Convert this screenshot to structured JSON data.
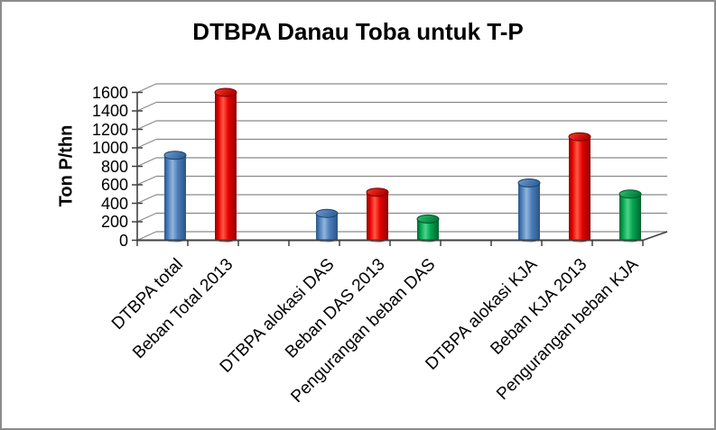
{
  "window": {
    "background": "#ffffff",
    "frame_color": "#8c8c8c"
  },
  "chart_data": {
    "type": "bar",
    "style": "3d-cylinder",
    "title": "DTBPA Danau Toba untuk T-P",
    "xlabel": "",
    "ylabel": "Ton P/thn",
    "ylim": [
      0,
      1600
    ],
    "ytick_step": 200,
    "yticks": [
      0,
      200,
      400,
      600,
      800,
      1000,
      1200,
      1400,
      1600
    ],
    "grid": true,
    "legend": "none",
    "categories": [
      "DTBPA total",
      "Beban Total 2013",
      "DTBPA alokasi DAS",
      "Beban  DAS 2013",
      "Pengurangan beban DAS",
      "DTBPA alokasi KJA",
      "Beban KJA  2013",
      "Pengurangan beban KJA"
    ],
    "values": [
      920,
      1600,
      290,
      520,
      230,
      620,
      1120,
      500
    ],
    "bar_color_keys": [
      "blue",
      "red",
      "blue",
      "red",
      "green",
      "blue",
      "red",
      "green"
    ],
    "slots": [
      0,
      1,
      3,
      4,
      5,
      7,
      8,
      9
    ],
    "num_slots": 10,
    "palette": {
      "blue": {
        "dark": "#2a5583",
        "main": "#4a7ebb",
        "light": "#93b5dc",
        "top_light": "#6f9bcd",
        "top_dark": "#2f639f",
        "outline": "#1f4268"
      },
      "red": {
        "dark": "#8c0404",
        "main": "#e60000",
        "light": "#ff5a45",
        "top_light": "#fb3a28",
        "top_dark": "#ae0000",
        "outline": "#7c0000"
      },
      "green": {
        "dark": "#03632e",
        "main": "#00a64f",
        "light": "#4ed28a",
        "top_light": "#2ec172",
        "top_dark": "#007c3a",
        "outline": "#015427"
      }
    },
    "gridline_color": "#8a8a8a",
    "axis_color": "#404040",
    "text_color": "#000000"
  }
}
